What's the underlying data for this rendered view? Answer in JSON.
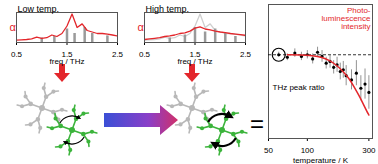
{
  "chart_data": [
    {
      "type": "line",
      "title": "Low temp.",
      "x_label": "freq / THz",
      "y_label": "α",
      "xlim": [
        0.5,
        2.5
      ],
      "xticks": [
        0.5,
        1.5,
        2.5
      ],
      "ylim": [
        0,
        1
      ],
      "tick_labels": "x",
      "series": [
        {
          "type": "bar",
          "color": "#9a9a9a",
          "x": [
            1.0,
            1.25,
            1.5,
            1.65,
            1.85,
            2.0,
            2.3
          ],
          "values": [
            0.15,
            0.2,
            0.45,
            0.3,
            0.5,
            0.3,
            0.22
          ]
        },
        {
          "type": "line",
          "color": "#e3262b",
          "x": [
            0.5,
            0.6,
            0.7,
            0.8,
            0.9,
            1.0,
            1.1,
            1.2,
            1.3,
            1.4,
            1.5,
            1.6,
            1.7,
            1.8,
            1.9,
            2.0,
            2.1,
            2.2,
            2.3,
            2.4,
            2.5
          ],
          "values": [
            0.08,
            0.09,
            0.1,
            0.12,
            0.18,
            0.14,
            0.16,
            0.25,
            0.2,
            0.3,
            0.55,
            0.95,
            0.5,
            0.62,
            0.4,
            0.35,
            0.3,
            0.3,
            0.28,
            0.25,
            0.22
          ]
        }
      ]
    },
    {
      "type": "line",
      "title": "High temp.",
      "x_label": "freq / THz",
      "y_label": "α",
      "xlim": [
        0.5,
        2.5
      ],
      "xticks": [
        0.5,
        1.5,
        2.5
      ],
      "ylim": [
        0,
        1
      ],
      "tick_labels": "x",
      "series": [
        {
          "type": "line",
          "color": "#cfcfcf",
          "x": [
            0.5,
            0.6,
            0.7,
            0.8,
            0.9,
            1.0,
            1.1,
            1.2,
            1.3,
            1.4,
            1.5,
            1.6,
            1.7,
            1.8,
            1.9,
            2.0,
            2.1,
            2.2,
            2.3,
            2.4,
            2.5
          ],
          "values": [
            0.08,
            0.09,
            0.1,
            0.12,
            0.18,
            0.14,
            0.16,
            0.25,
            0.2,
            0.3,
            0.55,
            0.95,
            0.5,
            0.62,
            0.4,
            0.35,
            0.3,
            0.3,
            0.28,
            0.25,
            0.22
          ]
        },
        {
          "type": "bar",
          "color": "#9a9a9a",
          "x": [
            1.0,
            1.3,
            1.5,
            1.7,
            1.9,
            2.1,
            2.3
          ],
          "values": [
            0.15,
            0.25,
            0.5,
            0.35,
            0.45,
            0.3,
            0.2
          ]
        },
        {
          "type": "line",
          "color": "#e3262b",
          "x": [
            0.5,
            0.6,
            0.7,
            0.8,
            0.9,
            1.0,
            1.1,
            1.2,
            1.3,
            1.4,
            1.5,
            1.6,
            1.7,
            1.8,
            1.9,
            2.0,
            2.1,
            2.2,
            2.3,
            2.4,
            2.5
          ],
          "values": [
            0.1,
            0.12,
            0.14,
            0.16,
            0.2,
            0.22,
            0.25,
            0.3,
            0.32,
            0.38,
            0.48,
            0.52,
            0.45,
            0.42,
            0.38,
            0.35,
            0.33,
            0.3,
            0.28,
            0.26,
            0.24
          ]
        }
      ]
    },
    {
      "type": "scatter",
      "x_label": "temperature / K",
      "log": "x",
      "xlim": [
        50,
        320
      ],
      "xticks": [
        50,
        100,
        300
      ],
      "ylim": [
        0,
        1.6
      ],
      "tick_labels": "x",
      "series": [
        {
          "type": "rule",
          "color": "#000000",
          "line_style": "dashed",
          "values": [
            1
          ]
        },
        {
          "type": "scatter",
          "name": "THz peak ratio",
          "color": "#000000",
          "marker": "circle",
          "x": [
            60,
            70,
            80,
            90,
            100,
            110,
            120,
            130,
            140,
            150,
            160,
            170,
            180,
            190,
            200,
            220,
            240,
            260,
            280,
            300
          ],
          "values": [
            1.0,
            0.97,
            1.02,
            0.98,
            1.0,
            0.95,
            1.03,
            0.98,
            0.9,
            0.92,
            0.85,
            0.88,
            0.8,
            0.82,
            0.75,
            0.7,
            0.78,
            0.6,
            0.65,
            0.55
          ],
          "errors": [
            0.03,
            0.04,
            0.05,
            0.05,
            0.05,
            0.06,
            0.06,
            0.07,
            0.07,
            0.08,
            0.08,
            0.09,
            0.1,
            0.1,
            0.12,
            0.12,
            0.15,
            0.15,
            0.18,
            0.2
          ]
        },
        {
          "type": "line",
          "name": "Photo-\nluminescence\nintensity",
          "color": "#e3262b",
          "x": [
            70,
            90,
            110,
            130,
            150,
            170,
            190,
            210,
            230,
            250,
            270,
            290,
            300
          ],
          "values": [
            1.0,
            1.0,
            0.99,
            0.97,
            0.93,
            0.87,
            0.8,
            0.72,
            0.62,
            0.52,
            0.42,
            0.32,
            0.28
          ]
        }
      ]
    }
  ],
  "diagram": {
    "symbol": "="
  }
}
